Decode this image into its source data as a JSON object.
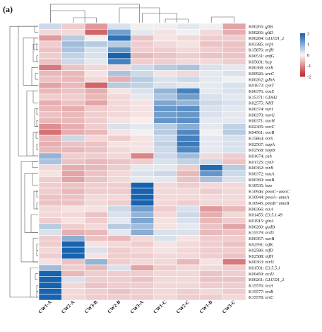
{
  "panel_label": "(a)",
  "chart_data": {
    "type": "heatmap",
    "columns": [
      "CW1-A",
      "CW2-A",
      "CW3-B",
      "CW2-B",
      "CW3-A",
      "CW1-C",
      "CW2-C",
      "CW1-B",
      "CW3-C"
    ],
    "rows": [
      {
        "id": "K00265",
        "gene": "gltB"
      },
      {
        "id": "K00266",
        "gene": "gltD"
      },
      {
        "id": "K00284",
        "gene": "GLUD1_2"
      },
      {
        "id": "K03385",
        "gene": "nrfA"
      },
      {
        "id": "K15876",
        "gene": "nrfH"
      },
      {
        "id": "K00531",
        "gene": "anfG"
      },
      {
        "id": "K05601",
        "gene": "hcp"
      },
      {
        "id": "K00368",
        "gene": "nirK"
      },
      {
        "id": "K00926",
        "gene": "arcC"
      },
      {
        "id": "K00262",
        "gene": "gdhA"
      },
      {
        "id": "K01673",
        "gene": "cynT"
      },
      {
        "id": "K00376",
        "gene": "nosZ"
      },
      {
        "id": "K15371",
        "gene": "GDH2"
      },
      {
        "id": "K02575",
        "gene": "NRT"
      },
      {
        "id": "K00374",
        "gene": "narI"
      },
      {
        "id": "K00370",
        "gene": "narG"
      },
      {
        "id": "K00371",
        "gene": "narH"
      },
      {
        "id": "K02305",
        "gene": "norC"
      },
      {
        "id": "K04561",
        "gene": "norB"
      },
      {
        "id": "K15864",
        "gene": "nirS"
      },
      {
        "id": "K02567",
        "gene": "napA"
      },
      {
        "id": "K02568",
        "gene": "napB"
      },
      {
        "id": "K01674",
        "gene": "cah"
      },
      {
        "id": "K01725",
        "gene": "cynS"
      },
      {
        "id": "K00362",
        "gene": "nirB"
      },
      {
        "id": "K00372",
        "gene": "nasA"
      },
      {
        "id": "K00360",
        "gene": "nasB"
      },
      {
        "id": "K10535",
        "gene": "hao"
      },
      {
        "id": "K10946",
        "gene": "pmoC−amoC"
      },
      {
        "id": "K10944",
        "gene": "pmoA−amoA"
      },
      {
        "id": "K10945",
        "gene": "pmoB−amoB"
      },
      {
        "id": "K00366",
        "gene": "nirA"
      },
      {
        "id": "K01455",
        "gene": "E3.5.1.49"
      },
      {
        "id": "K01915",
        "gene": "glnA"
      },
      {
        "id": "K00260",
        "gene": "gudB"
      },
      {
        "id": "K15579",
        "gene": "nrtD"
      },
      {
        "id": "K00367",
        "gene": "narB"
      },
      {
        "id": "K02591",
        "gene": "nifK"
      },
      {
        "id": "K02586",
        "gene": "nifD"
      },
      {
        "id": "K02588",
        "gene": "nifH"
      },
      {
        "id": "K00363",
        "gene": "nirD"
      },
      {
        "id": "K01501",
        "gene": "E3.5.5.1"
      },
      {
        "id": "K00459",
        "gene": "ncd2"
      },
      {
        "id": "K00261",
        "gene": "GLUD1_2"
      },
      {
        "id": "K15576",
        "gene": "nrtA"
      },
      {
        "id": "K15577",
        "gene": "nrtB"
      },
      {
        "id": "K15578",
        "gene": "nrtC"
      }
    ],
    "values": [
      [
        0.4,
        -0.4,
        -0.9,
        0.3,
        0.1,
        0.1,
        0.2,
        0.1,
        -0.8
      ],
      [
        -0.3,
        -0.3,
        -1.4,
        1.2,
        0.2,
        -0.2,
        0.1,
        -0.3,
        -0.7
      ],
      [
        -0.9,
        0.6,
        0.1,
        1.8,
        -0.5,
        -0.2,
        -0.3,
        -0.4,
        -0.4
      ],
      [
        -0.4,
        0.8,
        0.6,
        0.6,
        -0.4,
        -0.3,
        -0.2,
        -0.5,
        -0.5
      ],
      [
        -0.5,
        0.7,
        0.3,
        1.3,
        -0.4,
        -0.4,
        -0.3,
        -0.4,
        -0.5
      ],
      [
        -0.4,
        0.5,
        0.3,
        2.2,
        -0.6,
        -0.5,
        -0.4,
        -0.5,
        -0.5
      ],
      [
        -0.5,
        0.4,
        0.2,
        1.6,
        -0.4,
        -0.4,
        -0.3,
        -0.3,
        -0.4
      ],
      [
        -1.2,
        -0.5,
        -0.3,
        -0.3,
        0.4,
        0.6,
        0.7,
        0.3,
        0.2
      ],
      [
        -0.6,
        -0.6,
        -0.2,
        0.7,
        0.4,
        -0.2,
        -0.3,
        0.2,
        0.3
      ],
      [
        -0.5,
        -0.6,
        -0.3,
        -0.7,
        0.6,
        0.3,
        0.4,
        0.2,
        0.1
      ],
      [
        -0.8,
        -0.6,
        -1.4,
        0.6,
        0.5,
        0.3,
        0.2,
        0.2,
        0.3
      ],
      [
        -0.6,
        -0.5,
        -0.7,
        -0.2,
        0.3,
        0.9,
        1.6,
        0.2,
        0.3
      ],
      [
        -0.4,
        -0.4,
        -0.6,
        -0.3,
        0.2,
        0.7,
        1.2,
        0.3,
        0.2
      ],
      [
        -0.7,
        -0.5,
        -0.8,
        -0.3,
        -0.2,
        1.1,
        0.9,
        0.4,
        0.3
      ],
      [
        -0.6,
        -0.7,
        -0.4,
        -0.3,
        -0.2,
        1.3,
        1.4,
        0.3,
        0.2
      ],
      [
        -0.5,
        -0.6,
        -0.4,
        -0.3,
        -0.2,
        1.2,
        1.3,
        0.3,
        0.2
      ],
      [
        -0.6,
        -0.6,
        -0.4,
        -0.2,
        -0.1,
        1.3,
        1.4,
        0.2,
        0.2
      ],
      [
        -1.0,
        -0.7,
        -0.4,
        0.3,
        0.2,
        0.6,
        1.0,
        0.2,
        0.5
      ],
      [
        -1.3,
        -0.7,
        -0.6,
        -0.2,
        0.1,
        0.6,
        1.5,
        0.1,
        0.6
      ],
      [
        -0.6,
        0.4,
        -0.3,
        -0.4,
        -0.2,
        0.4,
        1.6,
        0.2,
        0.3
      ],
      [
        -0.7,
        -0.5,
        -0.5,
        -0.2,
        -0.2,
        0.5,
        1.7,
        0.2,
        0.3
      ],
      [
        -0.6,
        -0.6,
        -0.5,
        -0.3,
        -0.2,
        0.4,
        1.5,
        0.2,
        0.3
      ],
      [
        0.9,
        -0.4,
        -0.4,
        -0.3,
        -1.1,
        0.4,
        0.8,
        -0.3,
        -0.4
      ],
      [
        0.7,
        -0.5,
        -0.6,
        -0.5,
        -0.4,
        0.3,
        0.5,
        0.4,
        -0.5
      ],
      [
        -0.3,
        -0.7,
        -0.6,
        -0.4,
        0.2,
        0.2,
        -0.4,
        1.9,
        0.6
      ],
      [
        -0.2,
        -0.8,
        -0.5,
        -0.3,
        0.3,
        0.4,
        -0.6,
        1.3,
        0.4
      ],
      [
        -0.4,
        -0.8,
        -0.5,
        -0.3,
        0.2,
        0.2,
        -0.5,
        0.7,
        0.3
      ],
      [
        -0.4,
        -0.5,
        -0.4,
        -0.4,
        2.2,
        -0.3,
        -0.4,
        -0.3,
        -0.3
      ],
      [
        -0.4,
        -0.6,
        -0.4,
        -0.4,
        2.2,
        -0.3,
        -0.3,
        -0.4,
        -0.3
      ],
      [
        -0.5,
        -0.5,
        -0.3,
        -0.3,
        2.2,
        -0.3,
        -0.3,
        -0.3,
        -0.3
      ],
      [
        -0.5,
        -0.5,
        -0.3,
        -0.4,
        2.2,
        -0.3,
        -0.4,
        -0.3,
        -0.3
      ],
      [
        -0.3,
        -0.2,
        -0.2,
        0.4,
        1.2,
        -0.4,
        0.3,
        -0.9,
        -0.6
      ],
      [
        -0.3,
        -0.3,
        -0.5,
        0.3,
        0.9,
        -0.3,
        0.4,
        -0.7,
        -0.3
      ],
      [
        -0.4,
        -0.2,
        -0.4,
        0.2,
        1.1,
        -0.2,
        0.3,
        -0.6,
        -0.4
      ],
      [
        0.6,
        -0.4,
        -0.3,
        0.6,
        0.8,
        -0.2,
        0.2,
        -0.5,
        -0.8
      ],
      [
        0.3,
        -0.7,
        -0.6,
        0.2,
        1.0,
        0.3,
        0.3,
        -0.6,
        -0.5
      ],
      [
        -0.4,
        1.0,
        -0.5,
        -0.6,
        -0.3,
        0.3,
        -0.2,
        -0.4,
        -0.4
      ],
      [
        -0.4,
        2.2,
        -0.2,
        -0.3,
        -0.4,
        -0.2,
        -0.3,
        -0.4,
        -0.5
      ],
      [
        -0.3,
        2.2,
        0.3,
        -0.4,
        -0.3,
        -0.2,
        -0.3,
        -0.4,
        -0.4
      ],
      [
        -0.4,
        2.2,
        -0.2,
        -0.4,
        -0.4,
        -0.3,
        -0.3,
        -0.4,
        -0.5
      ],
      [
        -0.2,
        -0.5,
        0.9,
        -0.4,
        -0.3,
        -0.3,
        -0.6,
        -0.2,
        -1.2
      ],
      [
        0.8,
        -0.4,
        -0.6,
        0.3,
        -0.8,
        -0.4,
        -0.3,
        -0.3,
        -0.4
      ],
      [
        2.2,
        -0.6,
        -0.4,
        -0.4,
        -0.4,
        -0.3,
        -0.3,
        -0.5,
        -0.4
      ],
      [
        2.0,
        0.3,
        -0.4,
        -0.4,
        -0.5,
        -0.3,
        -0.3,
        -0.5,
        -0.5
      ],
      [
        2.2,
        -0.3,
        -0.5,
        -0.4,
        -0.4,
        -0.3,
        -0.3,
        -0.4,
        -0.4
      ],
      [
        2.2,
        -0.3,
        -0.4,
        -0.5,
        -0.4,
        -0.3,
        -0.4,
        -0.3,
        -0.4
      ],
      [
        2.2,
        -0.3,
        -0.4,
        -0.4,
        -0.4,
        -0.3,
        -0.4,
        -0.4,
        -0.3
      ]
    ],
    "color_scale": {
      "range": [
        -2,
        2
      ],
      "ticks": [
        2,
        1,
        0,
        -1,
        -2
      ],
      "colors": {
        "low": "#c0272d",
        "mid": "#fbf7f6",
        "high": "#1763b0"
      }
    },
    "row_dendrogram": true,
    "column_dendrogram": true,
    "legend_position": "right"
  }
}
